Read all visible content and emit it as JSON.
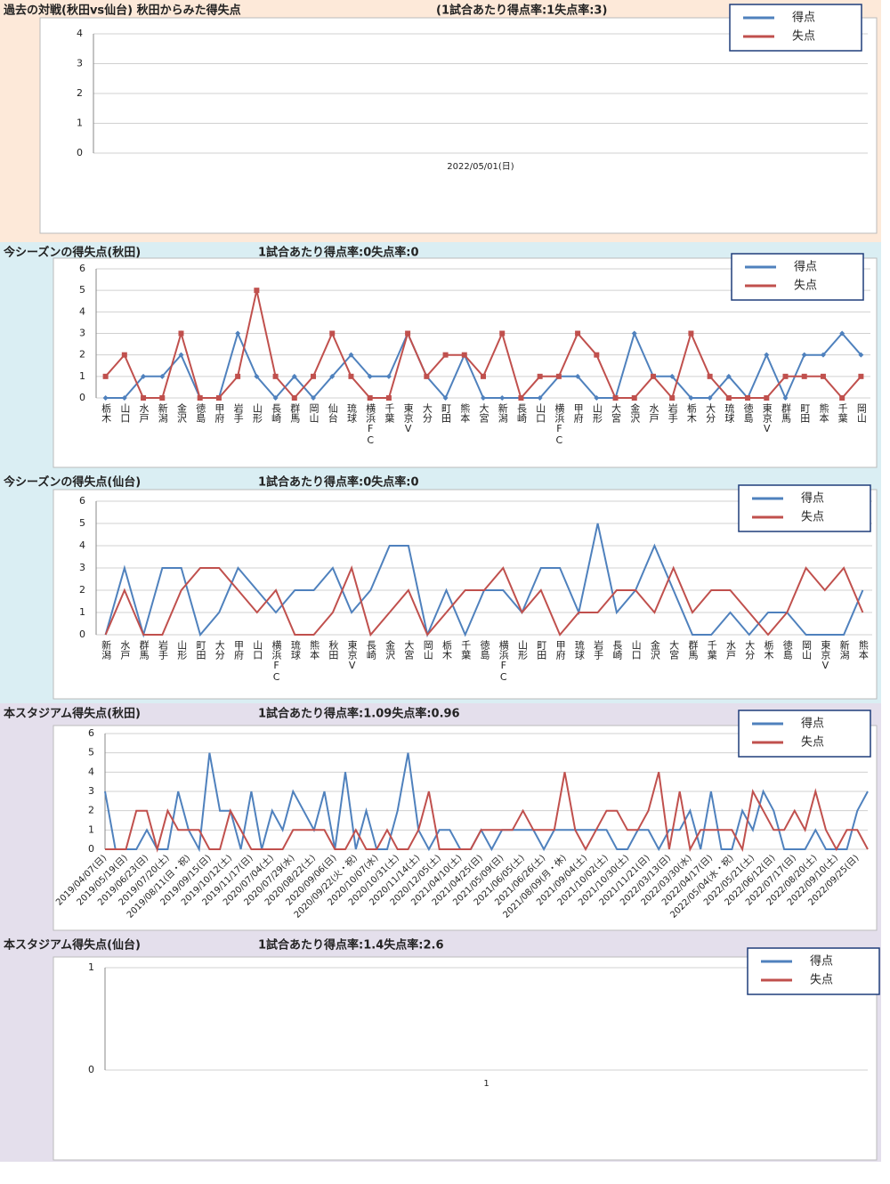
{
  "chart_data": [
    {
      "type": "line",
      "title": "過去の対戦(秋田vs仙台) 秋田からみた得失点",
      "subtitle": "(1試合あたり得点率:1失点率:3)",
      "categories": [
        "2022/05/01(日)"
      ],
      "series": [
        {
          "name": "得点",
          "color": "#4f81bd",
          "values": [
            null
          ]
        },
        {
          "name": "失点",
          "color": "#c0504d",
          "values": [
            null
          ]
        }
      ],
      "ylim": [
        0,
        4
      ],
      "yticks": [
        0,
        1,
        2,
        3,
        4
      ],
      "grid": true,
      "legend": "top-right"
    },
    {
      "type": "line",
      "title": "今シーズンの得失点(秋田)",
      "subtitle": "1試合あたり得点率:0失点率:0",
      "categories": [
        "栃木",
        "山口",
        "水戸",
        "新潟",
        "金沢",
        "徳島",
        "甲府",
        "岩手",
        "山形",
        "長崎",
        "群馬",
        "岡山",
        "仙台",
        "琉球",
        "横浜FC",
        "千葉",
        "東京V",
        "大分",
        "町田",
        "熊本",
        "大宮",
        "新潟",
        "長崎",
        "山口",
        "横浜FC",
        "甲府",
        "山形",
        "大宮",
        "金沢",
        "水戸",
        "岩手",
        "栃木",
        "大分",
        "琉球",
        "徳島",
        "東京V",
        "群馬",
        "町田",
        "熊本",
        "千葉",
        "岡山"
      ],
      "series": [
        {
          "name": "得点",
          "color": "#4f81bd",
          "values": [
            0,
            0,
            1,
            1,
            2,
            0,
            0,
            3,
            1,
            0,
            1,
            0,
            1,
            2,
            1,
            1,
            3,
            1,
            0,
            2,
            0,
            0,
            0,
            0,
            1,
            1,
            0,
            0,
            3,
            1,
            1,
            0,
            0,
            1,
            0,
            2,
            0,
            2,
            2,
            3,
            2
          ]
        },
        {
          "name": "失点",
          "color": "#c0504d",
          "values": [
            1,
            2,
            0,
            0,
            3,
            0,
            0,
            1,
            5,
            1,
            0,
            1,
            3,
            1,
            0,
            0,
            3,
            1,
            2,
            2,
            1,
            3,
            0,
            1,
            1,
            3,
            2,
            0,
            0,
            1,
            0,
            3,
            1,
            0,
            0,
            0,
            1,
            1,
            1,
            0,
            1
          ]
        }
      ],
      "ylim": [
        0,
        6
      ],
      "yticks": [
        0,
        1,
        2,
        3,
        4,
        5,
        6
      ],
      "grid": true,
      "legend": "top-right",
      "markers": true
    },
    {
      "type": "line",
      "title": "今シーズンの得失点(仙台)",
      "subtitle": "1試合あたり得点率:0失点率:0",
      "categories": [
        "新潟",
        "水戸",
        "群馬",
        "岩手",
        "山形",
        "町田",
        "大分",
        "甲府",
        "山口",
        "横浜FC",
        "琉球",
        "熊本",
        "秋田",
        "東京V",
        "長崎",
        "金沢",
        "大宮",
        "岡山",
        "栃木",
        "千葉",
        "徳島",
        "横浜FC",
        "山形",
        "町田",
        "甲府",
        "琉球",
        "岩手",
        "長崎",
        "山口",
        "金沢",
        "大宮",
        "群馬",
        "千葉",
        "水戸",
        "大分",
        "栃木",
        "徳島",
        "岡山",
        "東京V",
        "新潟",
        "熊本"
      ],
      "series": [
        {
          "name": "得点",
          "color": "#4f81bd",
          "values": [
            0,
            3,
            0,
            3,
            3,
            0,
            1,
            3,
            2,
            1,
            2,
            2,
            3,
            1,
            2,
            4,
            4,
            0,
            2,
            0,
            2,
            2,
            1,
            3,
            3,
            1,
            5,
            1,
            2,
            4,
            2,
            0,
            0,
            1,
            0,
            1,
            1,
            0,
            0,
            0,
            2
          ]
        },
        {
          "name": "失点",
          "color": "#c0504d",
          "values": [
            0,
            2,
            0,
            0,
            2,
            3,
            3,
            2,
            1,
            2,
            0,
            0,
            1,
            3,
            0,
            1,
            2,
            0,
            1,
            2,
            2,
            3,
            1,
            2,
            0,
            1,
            1,
            2,
            2,
            1,
            3,
            1,
            2,
            2,
            1,
            0,
            1,
            3,
            2,
            3,
            1
          ]
        }
      ],
      "ylim": [
        0,
        6
      ],
      "yticks": [
        0,
        1,
        2,
        3,
        4,
        5,
        6
      ],
      "grid": true,
      "legend": "top-right"
    },
    {
      "type": "line",
      "title": "本スタジアム得失点(秋田)",
      "subtitle": "1試合あたり得点率:1.09失点率:0.96",
      "categories": [
        "2019/04/07(日)",
        null,
        "2019/05/19(日)",
        null,
        "2019/06/23(日)",
        null,
        "2019/07/20(土)",
        null,
        "2019/08/11(日・祝)",
        null,
        "2019/09/15(日)",
        null,
        "2019/10/12(土)",
        null,
        "2019/11/17(日)",
        null,
        "2020/07/04(土)",
        null,
        "2020/07/29(水)",
        null,
        "2020/08/22(土)",
        null,
        "2020/09/06(日)",
        null,
        "2020/09/22(火・祝)",
        null,
        "2020/10/07(水)",
        null,
        "2020/10/31(土)",
        null,
        "2020/11/14(土)",
        null,
        "2020/12/05(土)",
        null,
        "2021/04/10(土)",
        null,
        "2021/04/25(日)",
        null,
        "2021/05/09(日)",
        null,
        "2021/06/05(土)",
        null,
        "2021/06/26(土)",
        null,
        "2021/08/09(月・休)",
        null,
        "2021/09/04(土)",
        null,
        "2021/10/02(土)",
        null,
        "2021/10/30(土)",
        null,
        "2021/11/21(日)",
        null,
        "2022/03/13(日)",
        null,
        "2022/03/30(水)",
        null,
        "2022/04/17(日)",
        null,
        "2022/05/04(水・祝)",
        null,
        "2022/05/21(土)",
        null,
        "2022/06/12(日)",
        null,
        "2022/07/17(日)",
        null,
        "2022/08/20(土)",
        null,
        "2022/09/10(土)",
        null,
        "2022/09/25(日)",
        null
      ],
      "series": [
        {
          "name": "得点",
          "color": "#4f81bd",
          "values": [
            3,
            0,
            0,
            0,
            1,
            0,
            0,
            3,
            1,
            0,
            5,
            2,
            2,
            0,
            3,
            0,
            2,
            1,
            3,
            2,
            1,
            3,
            0,
            4,
            0,
            2,
            0,
            0,
            2,
            5,
            1,
            0,
            1,
            1,
            0,
            0,
            1,
            0,
            1,
            1,
            1,
            1,
            0,
            1,
            1,
            1,
            1,
            1,
            1,
            0,
            0,
            1,
            1,
            0,
            1,
            1,
            2,
            0,
            3,
            0,
            0,
            2,
            1,
            3,
            2,
            0,
            0,
            0,
            1,
            0,
            0,
            0,
            2,
            3
          ]
        },
        {
          "name": "失点",
          "color": "#c0504d",
          "values": [
            0,
            0,
            0,
            2,
            2,
            0,
            2,
            1,
            1,
            1,
            0,
            0,
            2,
            1,
            0,
            0,
            0,
            0,
            1,
            1,
            1,
            1,
            0,
            0,
            1,
            0,
            0,
            1,
            0,
            0,
            1,
            3,
            0,
            0,
            0,
            0,
            1,
            1,
            1,
            1,
            2,
            1,
            1,
            1,
            4,
            1,
            0,
            1,
            2,
            2,
            1,
            1,
            2,
            4,
            0,
            3,
            0,
            1,
            1,
            1,
            1,
            0,
            3,
            2,
            1,
            1,
            2,
            1,
            3,
            1,
            0,
            1,
            1,
            0
          ]
        }
      ],
      "ylim": [
        0,
        6
      ],
      "yticks": [
        0,
        1,
        2,
        3,
        4,
        5,
        6
      ],
      "grid": true,
      "legend": "top-right"
    },
    {
      "type": "line",
      "title": "本スタジアム得失点(仙台)",
      "subtitle": "1試合あたり得点率:1.4失点率:2.6",
      "categories": [
        "1"
      ],
      "series": [
        {
          "name": "得点",
          "color": "#4f81bd",
          "values": [
            null
          ]
        },
        {
          "name": "失点",
          "color": "#c0504d",
          "values": [
            null
          ]
        }
      ],
      "ylim": [
        0,
        1
      ],
      "yticks": [
        0,
        1
      ],
      "grid": true,
      "legend": "top-right"
    }
  ]
}
